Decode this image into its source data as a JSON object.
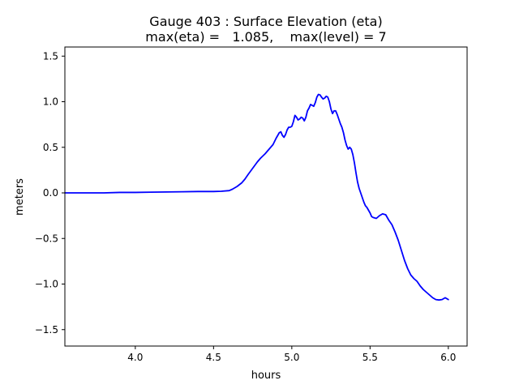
{
  "chart_data": {
    "type": "line",
    "title_line1": "Gauge 403 : Surface Elevation (eta)",
    "title_line2": "max(eta) =   1.085,    max(level) = 7",
    "xlabel": "hours",
    "ylabel": "meters",
    "xlim": [
      3.55,
      6.12
    ],
    "ylim": [
      -1.68,
      1.6
    ],
    "xticks": [
      4.0,
      4.5,
      5.0,
      5.5,
      6.0
    ],
    "xtick_labels": [
      "4.0",
      "4.5",
      "5.0",
      "5.5",
      "6.0"
    ],
    "yticks": [
      -1.5,
      -1.0,
      -0.5,
      0.0,
      0.5,
      1.0,
      1.5
    ],
    "ytick_labels": [
      "−1.5",
      "−1.0",
      "−0.5",
      "0.0",
      "0.5",
      "1.0",
      "1.5"
    ],
    "line_color": "#0000ff",
    "series": [
      {
        "name": "eta",
        "x": [
          3.55,
          3.6,
          3.7,
          3.8,
          3.9,
          4.0,
          4.1,
          4.2,
          4.3,
          4.4,
          4.5,
          4.55,
          4.6,
          4.62,
          4.65,
          4.68,
          4.7,
          4.72,
          4.75,
          4.78,
          4.8,
          4.83,
          4.85,
          4.88,
          4.9,
          4.92,
          4.93,
          4.94,
          4.95,
          4.96,
          4.97,
          4.98,
          4.99,
          5.0,
          5.01,
          5.02,
          5.03,
          5.04,
          5.05,
          5.06,
          5.07,
          5.08,
          5.09,
          5.1,
          5.11,
          5.12,
          5.13,
          5.14,
          5.15,
          5.16,
          5.17,
          5.18,
          5.19,
          5.2,
          5.21,
          5.22,
          5.23,
          5.24,
          5.25,
          5.26,
          5.27,
          5.28,
          5.29,
          5.3,
          5.31,
          5.32,
          5.33,
          5.34,
          5.35,
          5.36,
          5.37,
          5.38,
          5.39,
          5.4,
          5.41,
          5.42,
          5.43,
          5.44,
          5.45,
          5.46,
          5.47,
          5.48,
          5.49,
          5.5,
          5.51,
          5.52,
          5.54,
          5.56,
          5.58,
          5.6,
          5.62,
          5.64,
          5.66,
          5.68,
          5.7,
          5.72,
          5.74,
          5.76,
          5.78,
          5.8,
          5.82,
          5.84,
          5.86,
          5.88,
          5.9,
          5.92,
          5.94,
          5.96,
          5.98,
          6.0
        ],
        "y": [
          0.0,
          0.0,
          0.0,
          0.0,
          0.005,
          0.005,
          0.008,
          0.01,
          0.012,
          0.015,
          0.015,
          0.018,
          0.025,
          0.04,
          0.07,
          0.11,
          0.15,
          0.2,
          0.27,
          0.34,
          0.38,
          0.43,
          0.47,
          0.53,
          0.6,
          0.66,
          0.67,
          0.63,
          0.61,
          0.64,
          0.69,
          0.72,
          0.72,
          0.73,
          0.78,
          0.85,
          0.83,
          0.8,
          0.81,
          0.83,
          0.82,
          0.79,
          0.83,
          0.9,
          0.93,
          0.97,
          0.96,
          0.95,
          0.99,
          1.05,
          1.08,
          1.075,
          1.05,
          1.03,
          1.04,
          1.06,
          1.05,
          1.0,
          0.92,
          0.87,
          0.9,
          0.9,
          0.86,
          0.81,
          0.76,
          0.72,
          0.66,
          0.58,
          0.52,
          0.48,
          0.5,
          0.48,
          0.42,
          0.33,
          0.22,
          0.12,
          0.05,
          0.0,
          -0.05,
          -0.1,
          -0.14,
          -0.16,
          -0.19,
          -0.22,
          -0.26,
          -0.27,
          -0.28,
          -0.25,
          -0.23,
          -0.24,
          -0.3,
          -0.35,
          -0.43,
          -0.52,
          -0.63,
          -0.74,
          -0.83,
          -0.9,
          -0.94,
          -0.97,
          -1.02,
          -1.06,
          -1.09,
          -1.12,
          -1.15,
          -1.17,
          -1.175,
          -1.17,
          -1.15,
          -1.17
        ]
      }
    ]
  }
}
